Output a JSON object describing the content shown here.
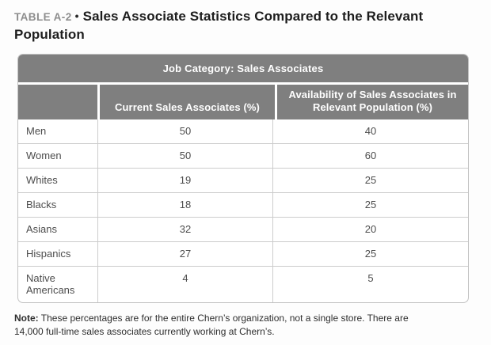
{
  "title": {
    "label": "TABLE A-2",
    "bullet": "•",
    "text": "Sales Associate Statistics Compared to the Relevant Population"
  },
  "table": {
    "header": "Job Category: Sales Associates",
    "columns": [
      "",
      "Current Sales Associates (%)",
      "Availability of Sales Associates in Relevant Population (%)"
    ],
    "rows": [
      {
        "label": "Men",
        "current": "50",
        "availability": "40"
      },
      {
        "label": "Women",
        "current": "50",
        "availability": "60"
      },
      {
        "label": "Whites",
        "current": "19",
        "availability": "25"
      },
      {
        "label": "Blacks",
        "current": "18",
        "availability": "25"
      },
      {
        "label": "Asians",
        "current": "32",
        "availability": "20"
      },
      {
        "label": "Hispanics",
        "current": "27",
        "availability": "25"
      },
      {
        "label": "Native Americans",
        "current": "4",
        "availability": "5"
      }
    ]
  },
  "note": {
    "label": "Note:",
    "line1": "These percentages are for the entire Chern’s organization, not a single store. There are",
    "line2": "14,000 full-time sales associates currently working at Chern’s."
  },
  "colors": {
    "header_bg": "#7f7f7f",
    "header_text": "#ffffff",
    "border": "#c2c2c2",
    "inner_border": "#cccccc",
    "body_text": "#4d4d4d",
    "title_label": "#8d8d8d",
    "title_text": "#1d1d1d",
    "background": "#fdfdfd"
  }
}
